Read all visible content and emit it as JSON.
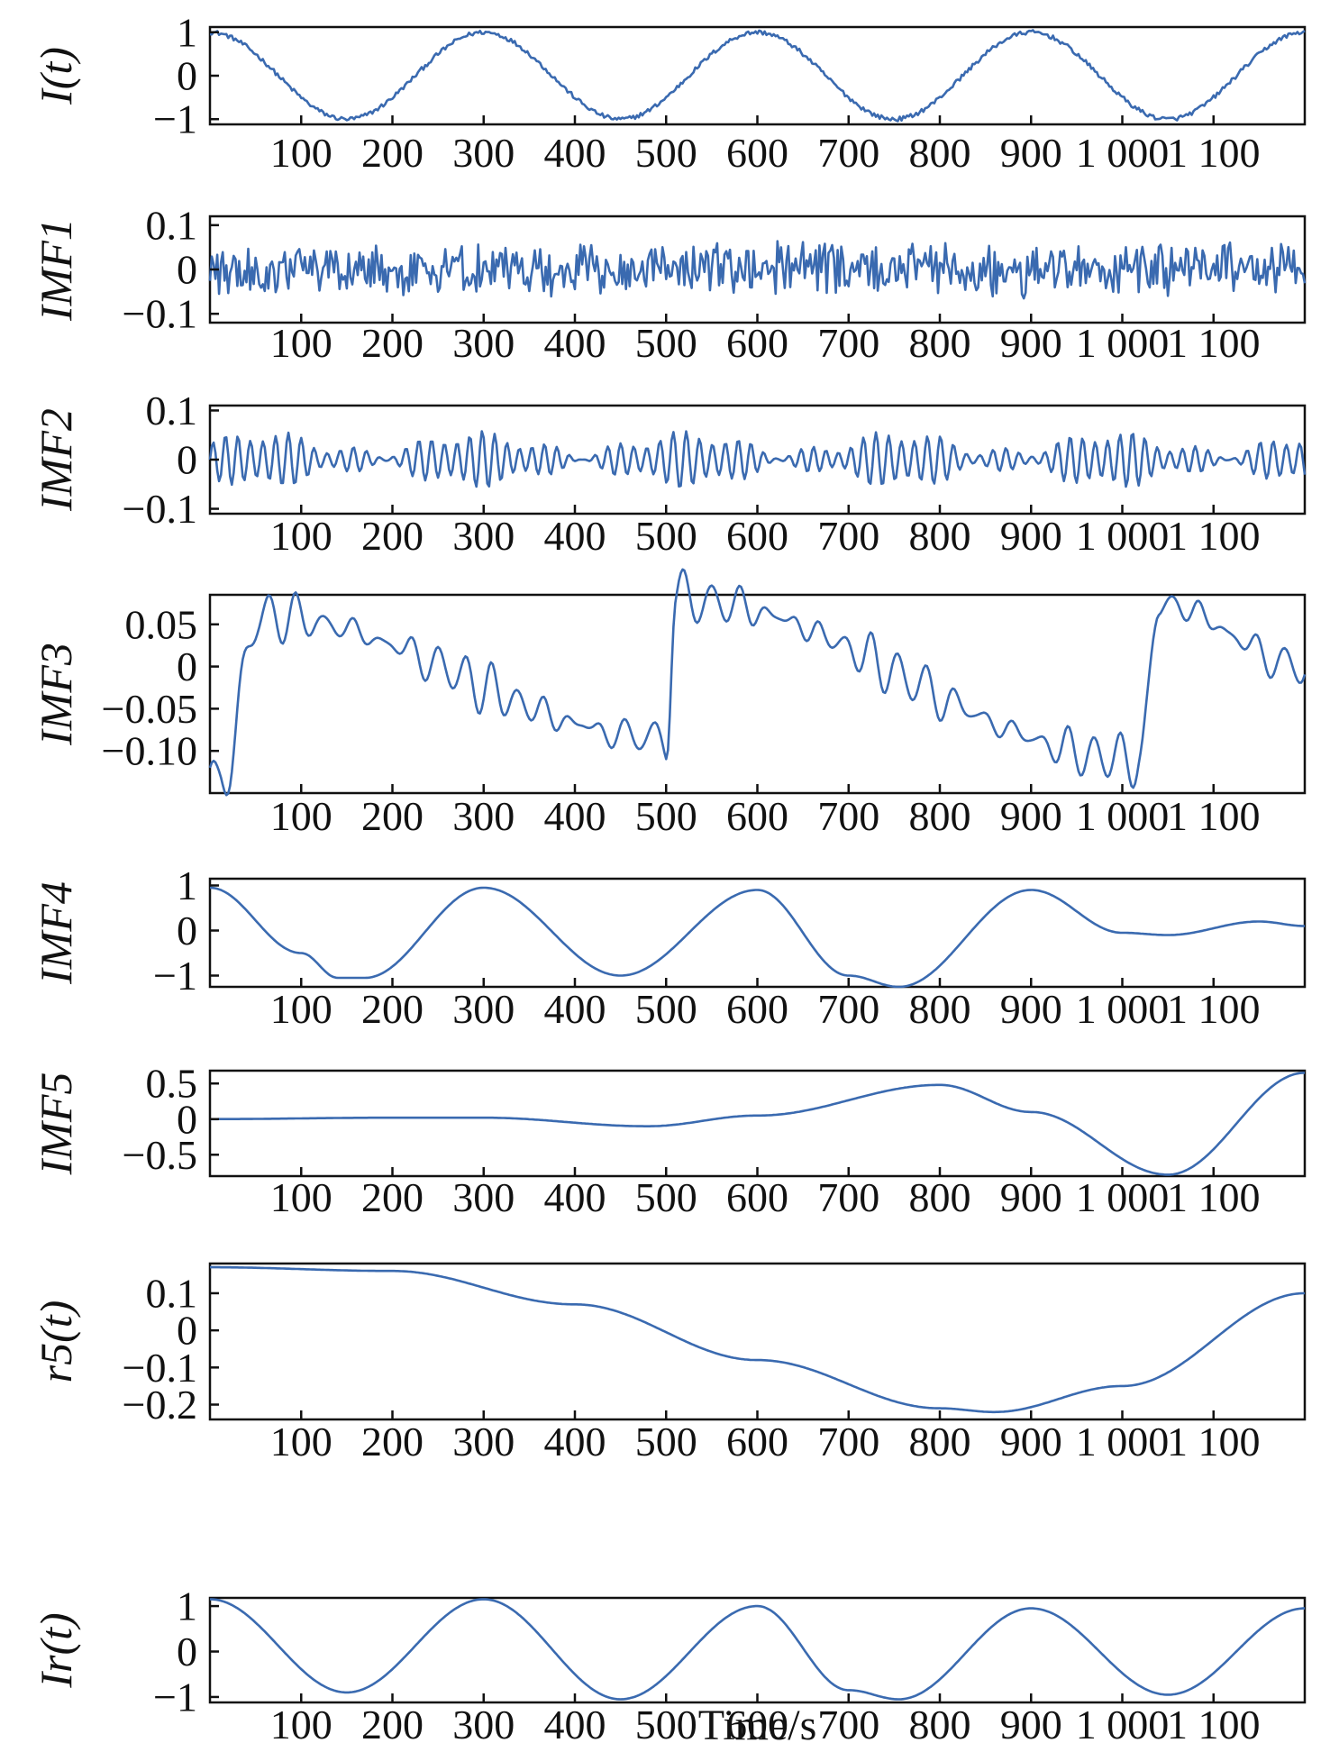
{
  "chart_data": {
    "type": "line",
    "xlabel": "Time/s",
    "line_color": "#3a6ab0",
    "grid": false,
    "x_tick_labels": [
      "100",
      "200",
      "300",
      "400",
      "500",
      "600",
      "700",
      "800",
      "900",
      "1 000",
      "1 100"
    ],
    "x_tick_values": [
      100,
      200,
      300,
      400,
      500,
      600,
      700,
      800,
      900,
      1000,
      1100
    ],
    "xlim": [
      0,
      1200
    ],
    "panels": [
      {
        "ylabel": "I(t)",
        "ylim": [
          -1.12,
          1.12
        ],
        "yticks": [
          {
            "v": 1,
            "t": "1"
          },
          {
            "v": 0,
            "t": "0"
          },
          {
            "v": -1,
            "t": "−1"
          }
        ],
        "series": {
          "kind": "sine",
          "amp": 1.0,
          "period": 300,
          "phase": 0.25,
          "noise": 0.05
        },
        "approx_points": {
          "x": [
            0,
            150,
            300,
            450,
            600,
            750,
            900,
            1050,
            1200
          ],
          "y": [
            1,
            -1,
            1,
            -1,
            1,
            -1,
            1,
            -1,
            1
          ]
        }
      },
      {
        "ylabel": "IMF1",
        "ylim": [
          -0.12,
          0.12
        ],
        "yticks": [
          {
            "v": 0.1,
            "t": "0.1"
          },
          {
            "v": 0,
            "t": "0"
          },
          {
            "v": -0.1,
            "t": "−0.1"
          }
        ],
        "series": {
          "kind": "noise",
          "amp": 0.045,
          "n": 600
        },
        "approx_points": {
          "x": [
            0,
            600,
            1200
          ],
          "y": [
            0,
            0,
            0
          ]
        }
      },
      {
        "ylabel": "IMF2",
        "ylim": [
          -0.11,
          0.11
        ],
        "yticks": [
          {
            "v": 0.1,
            "t": "0.1"
          },
          {
            "v": 0,
            "t": "0"
          },
          {
            "v": -0.1,
            "t": "−0.1"
          }
        ],
        "series": {
          "kind": "osc",
          "amp": 0.03,
          "period": 14
        },
        "approx_points": {
          "x": [
            0,
            600,
            1200
          ],
          "y": [
            0,
            0,
            0
          ]
        }
      },
      {
        "ylabel": "IMF3",
        "ylim": [
          -0.15,
          0.085
        ],
        "yticks": [
          {
            "v": 0.05,
            "t": "0.05"
          },
          {
            "v": 0,
            "t": "0"
          },
          {
            "v": -0.05,
            "t": "−0.05"
          },
          {
            "v": -0.1,
            "t": "−0.10"
          }
        ],
        "series": {
          "kind": "osc",
          "amp": 0.018,
          "period": 30
        },
        "approx_points": {
          "x": [
            0,
            10,
            55,
            500,
            510,
            1020,
            1040,
            1200
          ],
          "y": [
            -0.12,
            -0.145,
            0.06,
            -0.085,
            0.08,
            -0.11,
            0.075,
            0.0
          ]
        }
      },
      {
        "ylabel": "IMF4",
        "ylim": [
          -1.25,
          1.15
        ],
        "yticks": [
          {
            "v": 1,
            "t": "1"
          },
          {
            "v": 0,
            "t": "0"
          },
          {
            "v": -1,
            "t": "−1"
          }
        ],
        "series": {
          "kind": "points"
        },
        "approx_points": {
          "x": [
            0,
            100,
            140,
            170,
            300,
            450,
            600,
            700,
            755,
            900,
            1000,
            1050,
            1150,
            1200
          ],
          "y": [
            0.95,
            -0.5,
            -1.05,
            -1.05,
            0.95,
            -1.0,
            0.9,
            -1.0,
            -1.25,
            0.9,
            -0.05,
            -0.1,
            0.2,
            0.1
          ]
        }
      },
      {
        "ylabel": "IMF5",
        "ylim": [
          -0.8,
          0.68
        ],
        "yticks": [
          {
            "v": 0.5,
            "t": "0.5"
          },
          {
            "v": 0,
            "t": "0"
          },
          {
            "v": -0.5,
            "t": "−0.5"
          }
        ],
        "series": {
          "kind": "points"
        },
        "approx_points": {
          "x": [
            0,
            200,
            300,
            480,
            600,
            800,
            900,
            1050,
            1200
          ],
          "y": [
            0.0,
            0.02,
            0.02,
            -0.1,
            0.05,
            0.48,
            0.1,
            -0.78,
            0.65
          ]
        }
      },
      {
        "ylabel": "r5(t)",
        "ylim": [
          -0.24,
          0.18
        ],
        "yticks": [
          {
            "v": 0.1,
            "t": "0.1"
          },
          {
            "v": 0,
            "t": "0"
          },
          {
            "v": -0.1,
            "t": "−0.1"
          },
          {
            "v": -0.2,
            "t": "−0.2"
          }
        ],
        "series": {
          "kind": "points"
        },
        "approx_points": {
          "x": [
            0,
            200,
            400,
            600,
            800,
            860,
            1000,
            1200
          ],
          "y": [
            0.17,
            0.16,
            0.07,
            -0.08,
            -0.21,
            -0.22,
            -0.15,
            0.1
          ]
        }
      },
      {
        "ylabel": "Ir(t)",
        "ylim": [
          -1.12,
          1.18
        ],
        "yticks": [
          {
            "v": 1,
            "t": "1"
          },
          {
            "v": 0,
            "t": "0"
          },
          {
            "v": -1,
            "t": "−1"
          }
        ],
        "series": {
          "kind": "points"
        },
        "approx_points": {
          "x": [
            0,
            150,
            300,
            450,
            600,
            700,
            755,
            900,
            1050,
            1200
          ],
          "y": [
            1.15,
            -0.9,
            1.15,
            -1.05,
            1.0,
            -0.85,
            -1.05,
            0.95,
            -0.95,
            0.95
          ]
        }
      }
    ]
  }
}
